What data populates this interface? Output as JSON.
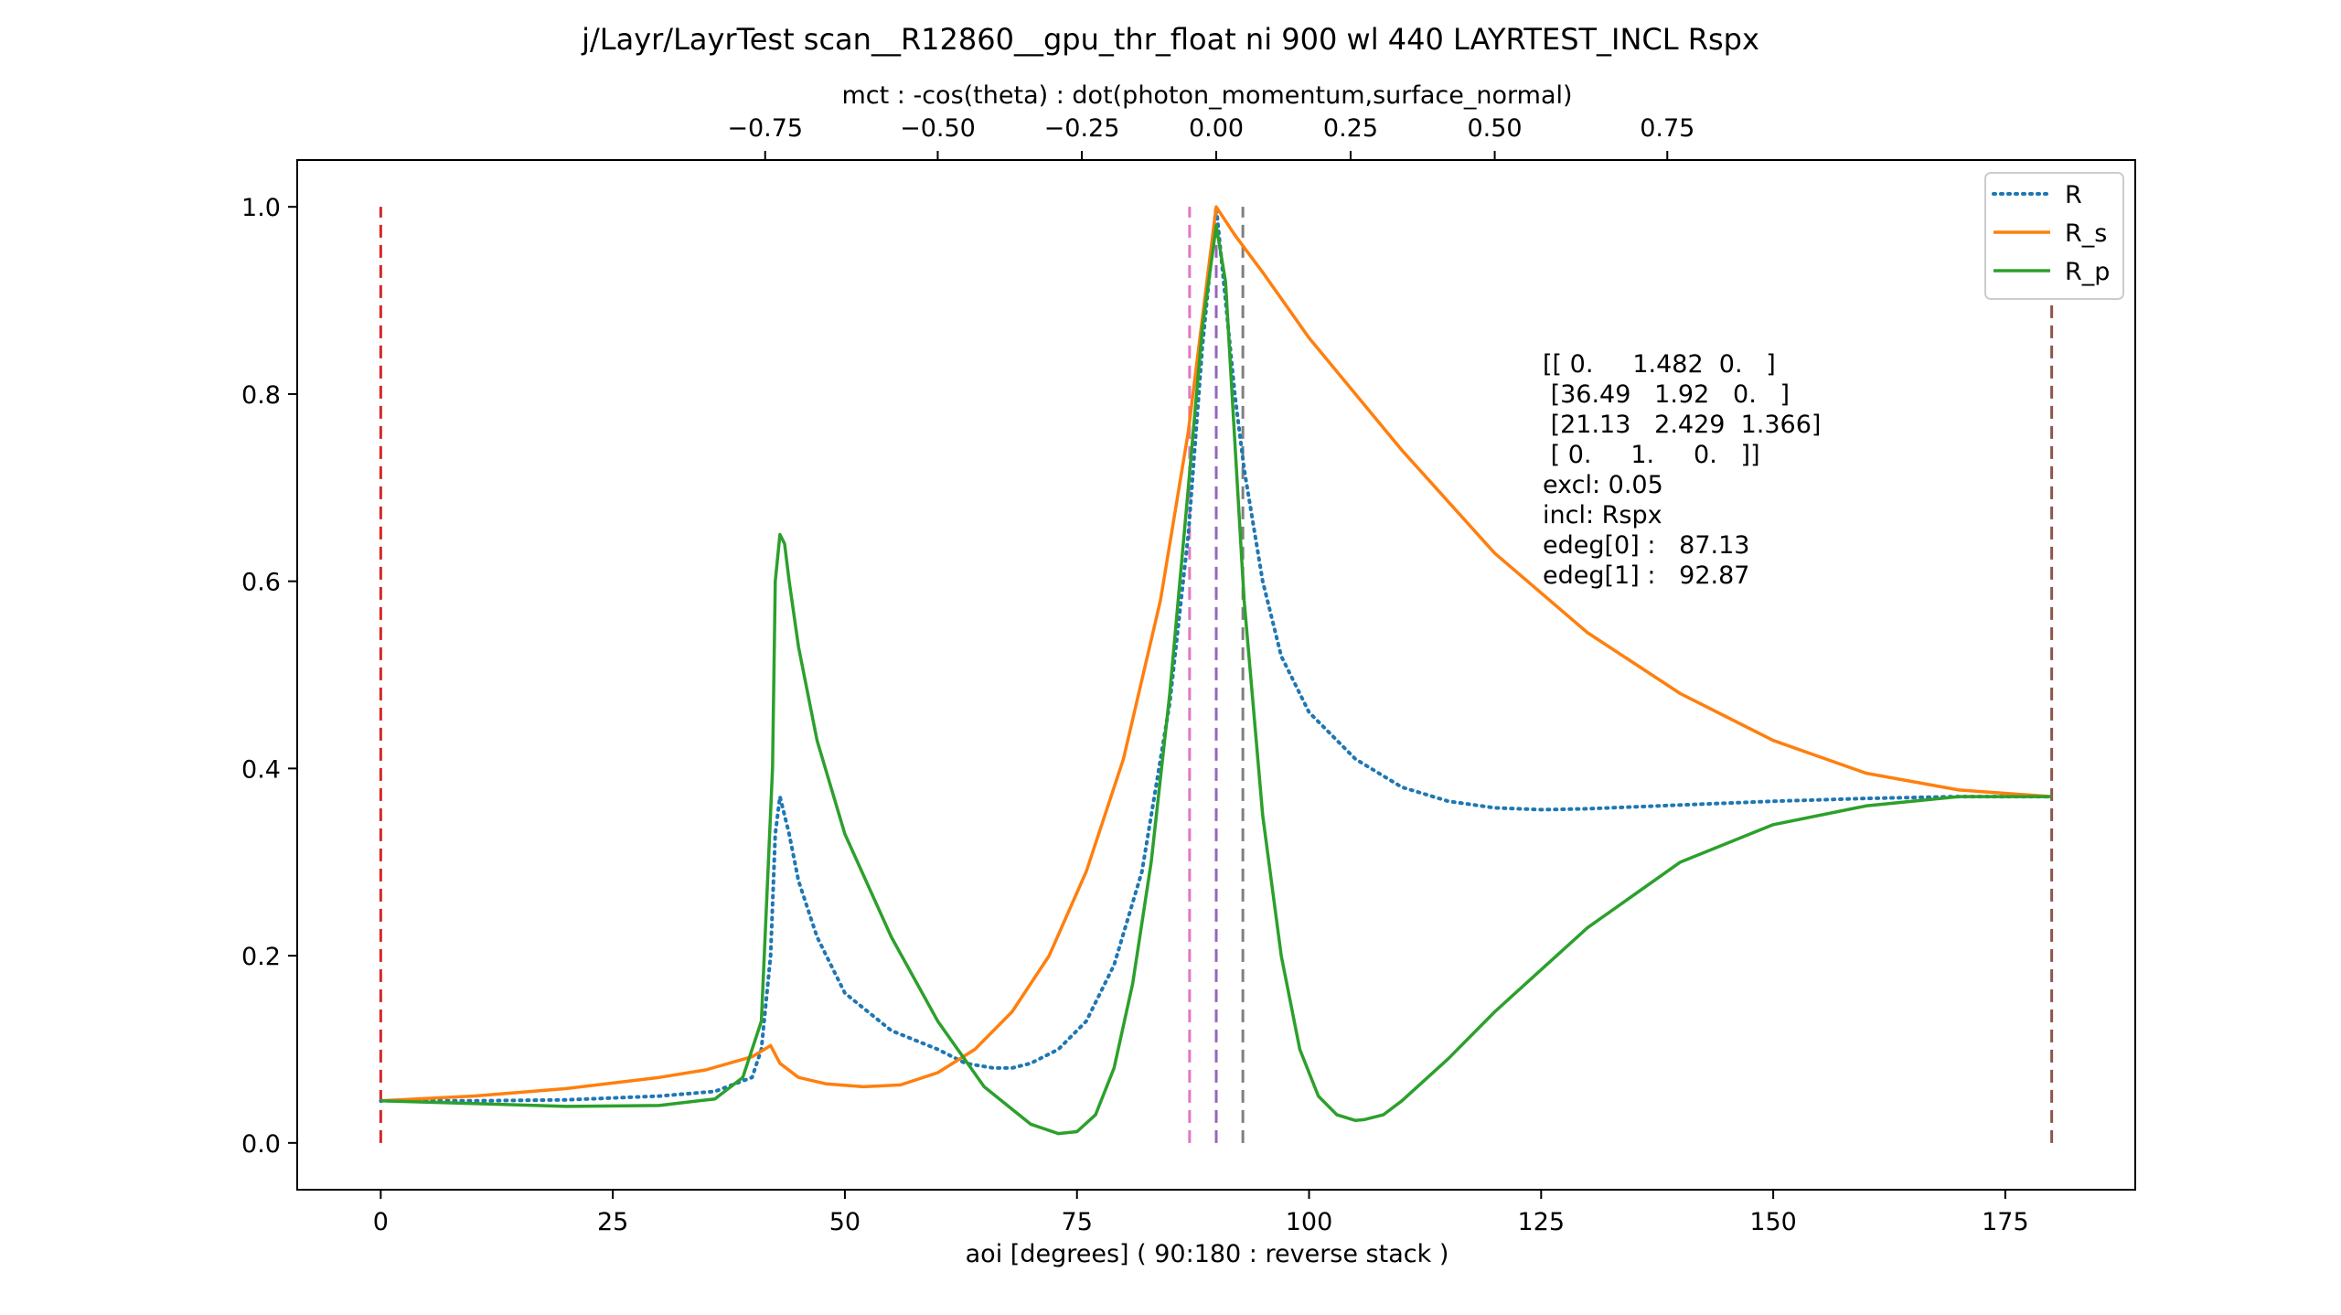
{
  "chart_data": {
    "type": "line",
    "title": "j/Layr/LayrTest scan__R12860__gpu_thr_float ni 900 wl 440 LAYRTEST_INCL Rspx",
    "xlabel": "aoi [degrees] ( 90:180 : reverse stack )",
    "top_xlabel": "mct : -cos(theta) : dot(photon_momentum,surface_normal)",
    "ylabel": "",
    "xlim": [
      -9,
      189
    ],
    "ylim": [
      -0.05,
      1.05
    ],
    "x_ticks": [
      "0",
      "25",
      "50",
      "75",
      "100",
      "125",
      "150",
      "175"
    ],
    "y_ticks": [
      "0.0",
      "0.2",
      "0.4",
      "0.6",
      "0.8",
      "1.0"
    ],
    "top_ticks": [
      "−0.75",
      "−0.50",
      "−0.25",
      "0.00",
      "0.25",
      "0.50",
      "0.75"
    ],
    "legend_position": "top-right",
    "grid": false,
    "series": [
      {
        "name": "R",
        "color": "#1f77b4",
        "style": "dotted",
        "x": [
          0,
          10,
          20,
          30,
          36,
          40,
          41,
          42,
          42.5,
          43,
          44,
          45,
          47,
          50,
          55,
          60,
          63,
          66,
          68,
          70,
          73,
          76,
          79,
          82,
          85,
          87,
          88.5,
          90,
          91,
          92,
          93,
          95,
          97,
          100,
          105,
          110,
          115,
          120,
          125,
          130,
          140,
          150,
          160,
          170,
          180
        ],
        "y": [
          0.045,
          0.045,
          0.046,
          0.05,
          0.055,
          0.07,
          0.1,
          0.2,
          0.33,
          0.37,
          0.33,
          0.28,
          0.22,
          0.16,
          0.12,
          0.1,
          0.085,
          0.08,
          0.08,
          0.085,
          0.1,
          0.13,
          0.19,
          0.29,
          0.47,
          0.65,
          0.85,
          1.0,
          0.9,
          0.8,
          0.72,
          0.6,
          0.52,
          0.46,
          0.41,
          0.38,
          0.365,
          0.358,
          0.356,
          0.357,
          0.361,
          0.365,
          0.368,
          0.37,
          0.37
        ]
      },
      {
        "name": "R_s",
        "color": "#ff7f0e",
        "style": "solid",
        "x": [
          0,
          10,
          20,
          30,
          35,
          40,
          42,
          43,
          45,
          48,
          52,
          56,
          60,
          64,
          68,
          72,
          76,
          80,
          84,
          87,
          89,
          90,
          92,
          95,
          100,
          110,
          120,
          130,
          140,
          150,
          160,
          170,
          180
        ],
        "y": [
          0.045,
          0.05,
          0.058,
          0.07,
          0.078,
          0.092,
          0.104,
          0.085,
          0.07,
          0.063,
          0.06,
          0.062,
          0.075,
          0.1,
          0.14,
          0.2,
          0.29,
          0.41,
          0.58,
          0.76,
          0.92,
          1.0,
          0.97,
          0.93,
          0.86,
          0.74,
          0.63,
          0.545,
          0.48,
          0.43,
          0.395,
          0.377,
          0.37
        ]
      },
      {
        "name": "R_p",
        "color": "#2ca02c",
        "style": "solid",
        "x": [
          0,
          10,
          20,
          30,
          36,
          39,
          41,
          42.2,
          42.5,
          43,
          43.5,
          44,
          45,
          47,
          50,
          55,
          60,
          65,
          70,
          73,
          75,
          77,
          79,
          81,
          83,
          85,
          87,
          88.5,
          90,
          91,
          92,
          93,
          95,
          97,
          99,
          101,
          103,
          105,
          106,
          108,
          110,
          115,
          120,
          130,
          140,
          150,
          160,
          170,
          180
        ],
        "y": [
          0.045,
          0.042,
          0.039,
          0.04,
          0.047,
          0.07,
          0.13,
          0.4,
          0.6,
          0.65,
          0.64,
          0.6,
          0.53,
          0.43,
          0.33,
          0.22,
          0.13,
          0.06,
          0.02,
          0.01,
          0.012,
          0.03,
          0.08,
          0.17,
          0.3,
          0.48,
          0.7,
          0.87,
          0.98,
          0.92,
          0.75,
          0.58,
          0.35,
          0.2,
          0.1,
          0.05,
          0.03,
          0.024,
          0.025,
          0.03,
          0.045,
          0.09,
          0.14,
          0.23,
          0.3,
          0.34,
          0.36,
          0.37,
          0.37
        ]
      }
    ],
    "vlines": [
      {
        "x": 0,
        "color": "#d62728"
      },
      {
        "x": 87.13,
        "color": "#e377c2"
      },
      {
        "x": 90,
        "color": "#9467bd"
      },
      {
        "x": 92.87,
        "color": "#7f7f7f"
      },
      {
        "x": 180,
        "color": "#8c564b"
      }
    ],
    "annotation_lines": [
      "[[ 0.     1.482  0.   ]",
      " [36.49   1.92   0.   ]",
      " [21.13   2.429  1.366]",
      " [ 0.     1.     0.   ]]",
      "excl: 0.05",
      "incl: Rspx",
      "edeg[0] :   87.13",
      "edeg[1] :   92.87"
    ]
  }
}
